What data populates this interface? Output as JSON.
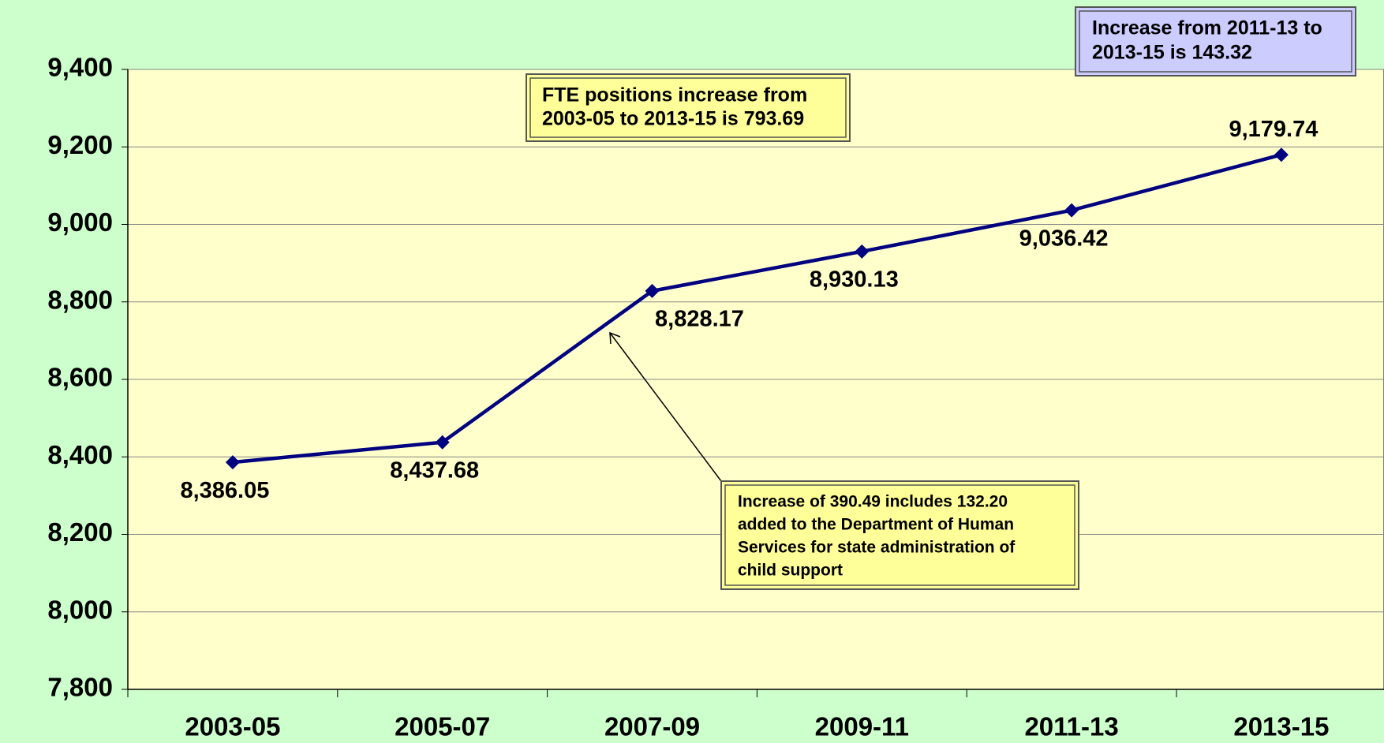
{
  "chart_data": {
    "type": "line",
    "categories": [
      "2003-05",
      "2005-07",
      "2007-09",
      "2009-11",
      "2011-13",
      "2013-15"
    ],
    "series": [
      {
        "color": "#000080",
        "values": [
          8386.05,
          8437.68,
          8828.17,
          8930.13,
          9036.42,
          9179.74
        ],
        "value_labels": [
          "8,386.05",
          "8,437.68",
          "8,828.17",
          "8,930.13",
          "9,036.42",
          "9,179.74"
        ]
      }
    ],
    "ylim": [
      7800,
      9400
    ],
    "yticks": [
      {
        "value": 7800,
        "label": "7,800"
      },
      {
        "value": 8000,
        "label": "8,000"
      },
      {
        "value": 8200,
        "label": "8,200"
      },
      {
        "value": 8400,
        "label": "8,400"
      },
      {
        "value": 8600,
        "label": "8,600"
      },
      {
        "value": 8800,
        "label": "8,800"
      },
      {
        "value": 9000,
        "label": "9,000"
      },
      {
        "value": 9200,
        "label": "9,200"
      },
      {
        "value": 9400,
        "label": "9,400"
      }
    ],
    "grid": true,
    "annotations": [
      {
        "lines": [
          "FTE positions increase from",
          "2003-05 to 2013-15 is 793.69"
        ]
      },
      {
        "lines": [
          "Increase from 2011-13 to",
          "2013-15 is 143.32"
        ]
      },
      {
        "lines": [
          "Increase of 390.49 includes 132.20",
          "added to the Department of Human",
          "Services for state administration of",
          "child support"
        ]
      }
    ]
  }
}
